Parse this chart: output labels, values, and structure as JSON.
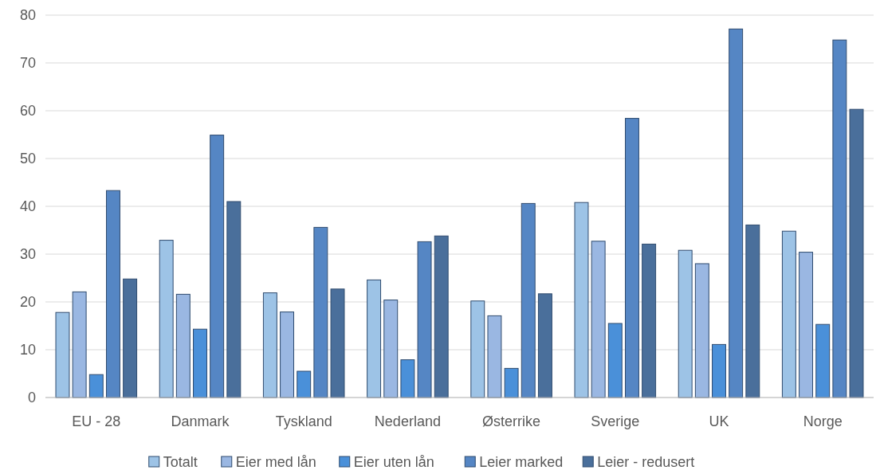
{
  "chart_data": {
    "type": "bar",
    "categories": [
      "EU - 28",
      "Danmark",
      "Tyskland",
      "Nederland",
      "Østerrike",
      "Sverige",
      "UK",
      "Norge"
    ],
    "series": [
      {
        "name": "Totalt",
        "color": "#9dc3e6",
        "values": [
          17.8,
          32.9,
          21.9,
          24.6,
          20.2,
          40.8,
          30.8,
          34.8
        ]
      },
      {
        "name": "Eier med lån",
        "color": "#9ab7e2",
        "values": [
          22.1,
          21.6,
          17.9,
          20.4,
          17.1,
          32.7,
          28.0,
          30.4
        ]
      },
      {
        "name": "Eier uten lån",
        "color": "#4a90d9",
        "values": [
          4.8,
          14.3,
          5.5,
          7.9,
          6.1,
          15.5,
          11.1,
          15.3
        ]
      },
      {
        "name": "Leier marked",
        "color": "#5586c4",
        "values": [
          43.3,
          54.9,
          35.6,
          32.6,
          40.6,
          58.4,
          77.1,
          74.8
        ]
      },
      {
        "name": "Leier - redusert",
        "color": "#4a6f9b",
        "values": [
          24.8,
          41.0,
          22.7,
          33.8,
          21.7,
          32.1,
          36.1,
          60.3
        ]
      }
    ],
    "ylim": [
      0,
      80
    ],
    "yticks": [
      0,
      10,
      20,
      30,
      40,
      50,
      60,
      70,
      80
    ],
    "grid": "y",
    "legend": "bottom"
  }
}
